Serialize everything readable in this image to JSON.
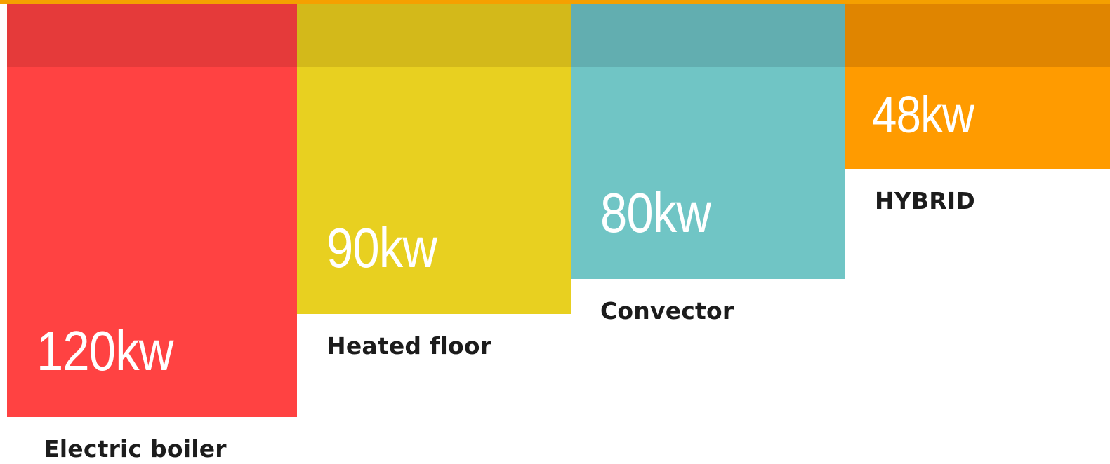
{
  "chart_data": {
    "type": "bar",
    "categories": [
      "Electric boiler",
      "Heated floor",
      "Convector",
      "HYBRID"
    ],
    "values": [
      120,
      90,
      80,
      48
    ],
    "unit": "kw",
    "value_labels": [
      "120kw",
      "90kw",
      "80kw",
      "48kw"
    ],
    "title": "",
    "xlabel": "",
    "ylabel": "",
    "ylim": [
      0,
      120
    ],
    "colors": [
      "#ff4242",
      "#e8d020",
      "#70c5c5",
      "#ff9b00"
    ],
    "band_colors": [
      "#e53a3a",
      "#d3b91a",
      "#62aeb0",
      "#e08500"
    ],
    "top_rule_color": "#f5a000",
    "grid": false,
    "legend": "none"
  }
}
